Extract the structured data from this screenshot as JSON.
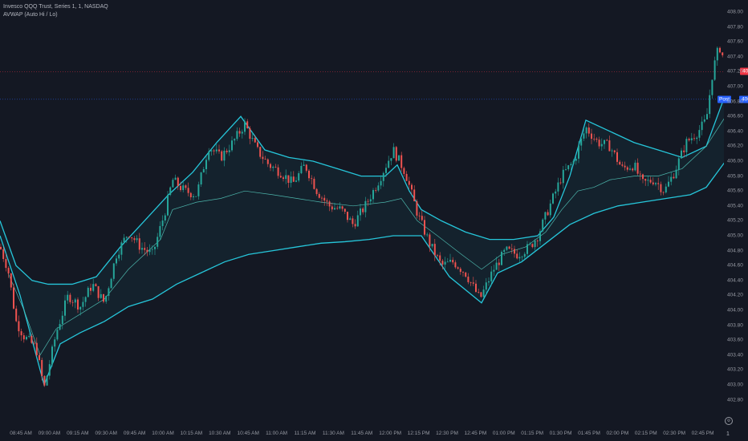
{
  "legend": {
    "symbol_line": "Invesco QQQ Trust, Series 1, 1, NASDAQ",
    "indicator_line": "AVWAP (Auto Hi / Lo)"
  },
  "colors": {
    "background": "#141823",
    "up_candle": "#26a69a",
    "down_candle": "#ef5350",
    "band": "#26c6da",
    "mid_line": "#4db6ac",
    "last_price_tag": "#f23645",
    "post_tag": "#2962ff"
  },
  "price_axis": {
    "ticks": [
      "408.00",
      "407.80",
      "407.60",
      "407.40",
      "407.20",
      "407.00",
      "406.80",
      "406.60",
      "406.40",
      "406.20",
      "406.00",
      "405.80",
      "405.60",
      "405.40",
      "405.20",
      "405.00",
      "404.80",
      "404.60",
      "404.40",
      "404.20",
      "404.00",
      "403.80",
      "403.60",
      "403.40",
      "403.20",
      "403.00",
      "402.80"
    ],
    "last_price_label": "407.20",
    "post_label": "Post",
    "post_price_label": "406.83"
  },
  "time_axis": {
    "ticks": [
      "08:45 AM",
      "09:00 AM",
      "09:15 AM",
      "09:30 AM",
      "09:45 AM",
      "10:00 AM",
      "10:15 AM",
      "10:30 AM",
      "10:45 AM",
      "11:00 AM",
      "11:15 AM",
      "11:30 AM",
      "11:45 AM",
      "12:00 PM",
      "12:15 PM",
      "12:30 PM",
      "12:45 PM",
      "01:00 PM",
      "01:15 PM",
      "01:30 PM",
      "01:45 PM",
      "02:00 PM",
      "02:15 PM",
      "02:30 PM",
      "02:45 PM"
    ],
    "scale_label": "1"
  },
  "chart_data": {
    "type": "candlestick",
    "ylim": [
      402.7,
      408.1
    ],
    "last_price": 407.2,
    "post_price": 406.83,
    "price_path": [
      [
        0,
        404.85
      ],
      [
        10,
        404.55
      ],
      [
        20,
        403.85
      ],
      [
        30,
        403.65
      ],
      [
        45,
        403.5
      ],
      [
        55,
        402.95
      ],
      [
        70,
        403.7
      ],
      [
        85,
        404.2
      ],
      [
        100,
        404.05
      ],
      [
        115,
        404.35
      ],
      [
        130,
        404.1
      ],
      [
        145,
        404.75
      ],
      [
        160,
        405.05
      ],
      [
        175,
        404.85
      ],
      [
        190,
        404.75
      ],
      [
        205,
        405.3
      ],
      [
        215,
        405.75
      ],
      [
        230,
        405.6
      ],
      [
        245,
        405.55
      ],
      [
        260,
        406.2
      ],
      [
        275,
        406.05
      ],
      [
        290,
        406.25
      ],
      [
        305,
        406.5
      ],
      [
        320,
        406.15
      ],
      [
        335,
        405.95
      ],
      [
        350,
        405.85
      ],
      [
        365,
        405.7
      ],
      [
        380,
        405.95
      ],
      [
        395,
        405.6
      ],
      [
        410,
        405.4
      ],
      [
        425,
        405.35
      ],
      [
        440,
        405.15
      ],
      [
        455,
        405.4
      ],
      [
        470,
        405.7
      ],
      [
        490,
        406.15
      ],
      [
        505,
        405.85
      ],
      [
        520,
        405.3
      ],
      [
        535,
        404.9
      ],
      [
        550,
        404.6
      ],
      [
        565,
        404.65
      ],
      [
        580,
        404.5
      ],
      [
        598,
        404.15
      ],
      [
        615,
        404.55
      ],
      [
        630,
        404.8
      ],
      [
        645,
        404.75
      ],
      [
        660,
        404.85
      ],
      [
        670,
        405.0
      ],
      [
        685,
        405.4
      ],
      [
        700,
        405.8
      ],
      [
        715,
        406.0
      ],
      [
        730,
        406.45
      ],
      [
        745,
        406.25
      ],
      [
        760,
        406.2
      ],
      [
        775,
        405.9
      ],
      [
        790,
        405.95
      ],
      [
        800,
        405.7
      ],
      [
        815,
        405.75
      ],
      [
        828,
        405.6
      ],
      [
        840,
        405.85
      ],
      [
        855,
        406.25
      ],
      [
        870,
        406.4
      ],
      [
        880,
        406.55
      ],
      [
        888,
        407.2
      ],
      [
        896,
        407.55
      ],
      [
        904,
        407.3
      ]
    ],
    "upper_band_path": [
      [
        0,
        405.2
      ],
      [
        20,
        404.6
      ],
      [
        40,
        404.4
      ],
      [
        60,
        404.35
      ],
      [
        90,
        404.35
      ],
      [
        120,
        404.45
      ],
      [
        150,
        404.85
      ],
      [
        180,
        405.2
      ],
      [
        210,
        405.55
      ],
      [
        240,
        405.85
      ],
      [
        270,
        406.25
      ],
      [
        300,
        406.6
      ],
      [
        330,
        406.15
      ],
      [
        360,
        406.05
      ],
      [
        390,
        406.0
      ],
      [
        420,
        405.9
      ],
      [
        450,
        405.8
      ],
      [
        480,
        405.8
      ],
      [
        495,
        405.95
      ],
      [
        510,
        405.6
      ],
      [
        525,
        405.35
      ],
      [
        550,
        405.2
      ],
      [
        580,
        405.05
      ],
      [
        610,
        404.95
      ],
      [
        640,
        404.95
      ],
      [
        670,
        405.0
      ],
      [
        690,
        405.25
      ],
      [
        710,
        405.8
      ],
      [
        730,
        406.55
      ],
      [
        760,
        406.4
      ],
      [
        790,
        406.25
      ],
      [
        820,
        406.15
      ],
      [
        850,
        406.05
      ],
      [
        880,
        406.2
      ],
      [
        904,
        406.9
      ]
    ],
    "lower_band_path": [
      [
        0,
        405.0
      ],
      [
        25,
        404.2
      ],
      [
        55,
        403.0
      ],
      [
        75,
        403.55
      ],
      [
        100,
        403.7
      ],
      [
        130,
        403.85
      ],
      [
        160,
        404.05
      ],
      [
        190,
        404.15
      ],
      [
        220,
        404.35
      ],
      [
        250,
        404.5
      ],
      [
        280,
        404.65
      ],
      [
        310,
        404.75
      ],
      [
        340,
        404.8
      ],
      [
        370,
        404.85
      ],
      [
        400,
        404.9
      ],
      [
        430,
        404.92
      ],
      [
        460,
        404.95
      ],
      [
        490,
        405.0
      ],
      [
        525,
        405.0
      ],
      [
        560,
        404.45
      ],
      [
        600,
        404.1
      ],
      [
        620,
        404.5
      ],
      [
        650,
        404.65
      ],
      [
        680,
        404.9
      ],
      [
        710,
        405.15
      ],
      [
        740,
        405.3
      ],
      [
        770,
        405.4
      ],
      [
        800,
        405.45
      ],
      [
        830,
        405.5
      ],
      [
        860,
        405.55
      ],
      [
        880,
        405.65
      ],
      [
        904,
        406.0
      ]
    ],
    "mid_line_path": [
      [
        10,
        404.5
      ],
      [
        30,
        404.0
      ],
      [
        50,
        403.4
      ],
      [
        70,
        403.75
      ],
      [
        100,
        403.95
      ],
      [
        130,
        404.15
      ],
      [
        160,
        404.55
      ],
      [
        200,
        404.95
      ],
      [
        215,
        405.35
      ],
      [
        245,
        405.45
      ],
      [
        275,
        405.5
      ],
      [
        305,
        405.6
      ],
      [
        340,
        405.55
      ],
      [
        370,
        405.5
      ],
      [
        400,
        405.45
      ],
      [
        440,
        405.4
      ],
      [
        480,
        405.45
      ],
      [
        500,
        405.5
      ],
      [
        520,
        405.2
      ],
      [
        545,
        405.0
      ],
      [
        575,
        404.75
      ],
      [
        600,
        404.55
      ],
      [
        625,
        404.75
      ],
      [
        655,
        404.85
      ],
      [
        680,
        405.05
      ],
      [
        700,
        405.35
      ],
      [
        720,
        405.6
      ],
      [
        740,
        405.65
      ],
      [
        760,
        405.75
      ],
      [
        790,
        405.8
      ],
      [
        820,
        405.8
      ],
      [
        850,
        405.9
      ],
      [
        880,
        406.2
      ],
      [
        904,
        406.6
      ]
    ]
  }
}
